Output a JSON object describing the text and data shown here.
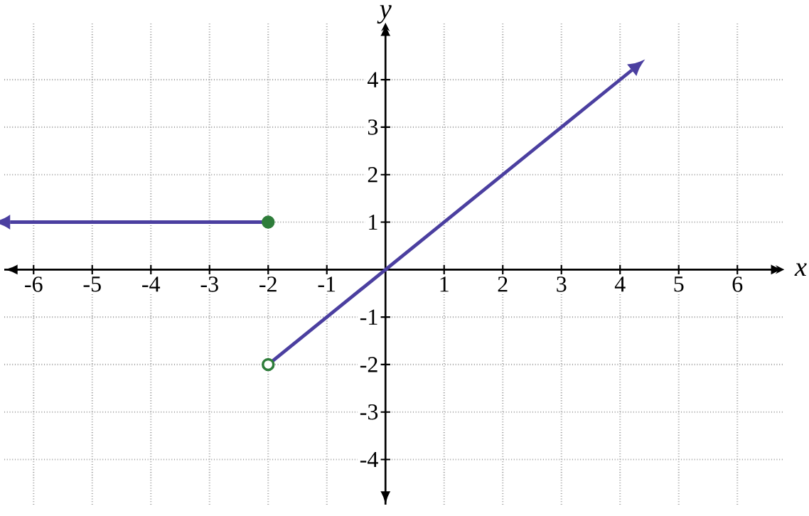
{
  "chart_data": {
    "type": "line",
    "xlabel": "x",
    "ylabel": "y",
    "xlim": [
      -6.5,
      6.8
    ],
    "ylim": [
      -4.95,
      5.2
    ],
    "xticks": [
      -6,
      -5,
      -4,
      -3,
      -2,
      -1,
      1,
      2,
      3,
      4,
      5,
      6
    ],
    "yticks": [
      -4,
      -3,
      -2,
      -1,
      1,
      2,
      3,
      4
    ],
    "grid": true,
    "series": [
      {
        "color": "#4b3fa0",
        "x": [
          -6.4,
          -2
        ],
        "values": [
          1,
          1
        ]
      },
      {
        "color": "#4b3fa0",
        "x": [
          -2,
          4.2
        ],
        "values": [
          -2,
          4.2
        ]
      },
      {
        "type": "scatter",
        "marker": "circle",
        "color": "#2e7d3a",
        "colors": [
          "#2e7d3a",
          "#ffffff"
        ],
        "x": [
          -2,
          -2
        ],
        "values": [
          1,
          -2
        ]
      }
    ]
  }
}
